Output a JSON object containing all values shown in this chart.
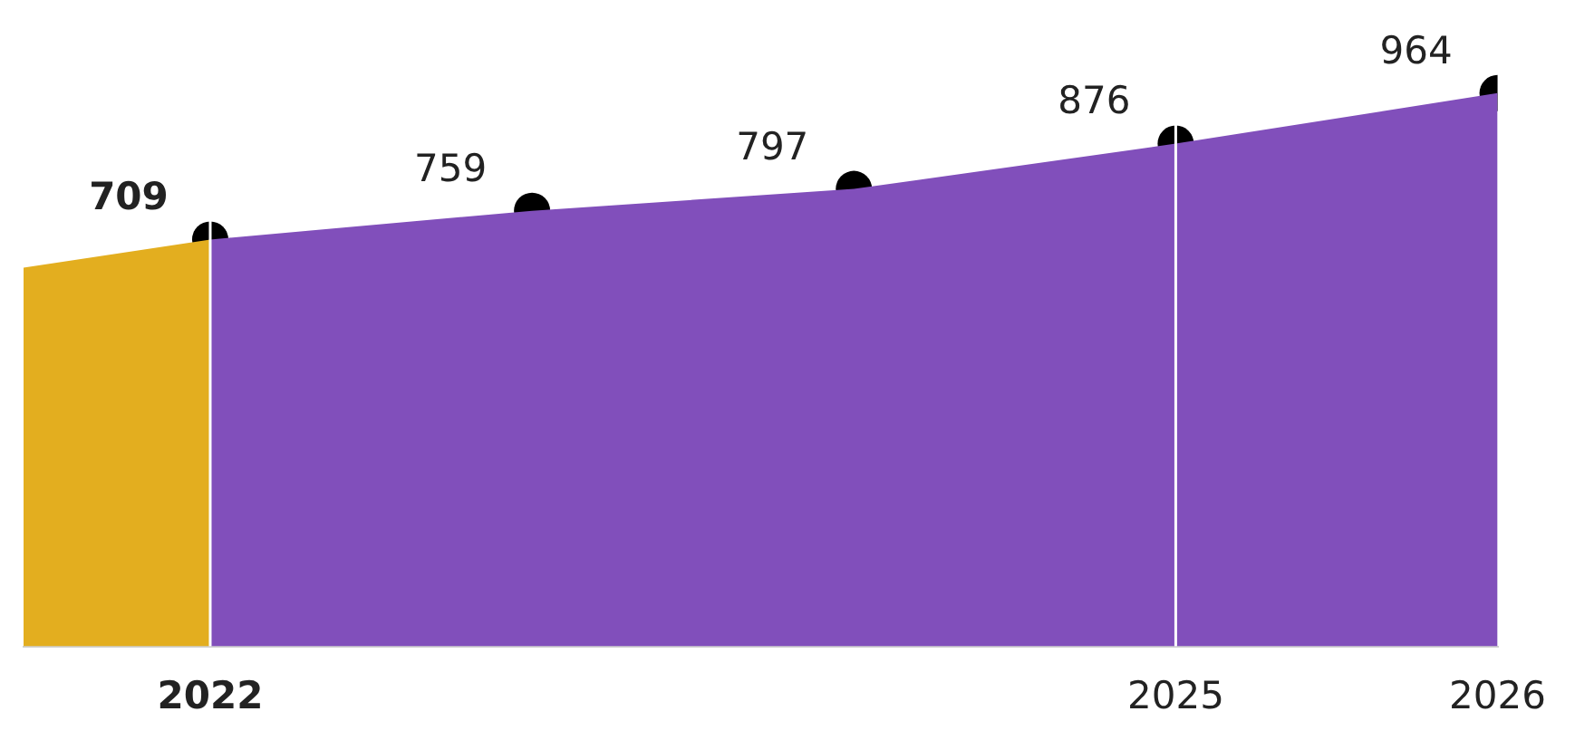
{
  "chart_data": {
    "type": "area",
    "xlim": [
      2021.42,
      2026
    ],
    "xticks": [
      2022,
      2025,
      2026
    ],
    "tick_labels": "x",
    "legend": false,
    "ref_lines": [
      {
        "axis": "x",
        "value": 2022,
        "color": "#ffffff"
      },
      {
        "axis": "x",
        "value": 2025,
        "color": "#ffffff"
      }
    ],
    "series": [
      {
        "color": "#e3ae1f",
        "x": [
          2021.42,
          2022
        ],
        "values": [
          660,
          709
        ]
      },
      {
        "color": "#814fbb",
        "x": [
          2022,
          2023,
          2024,
          2025,
          2026
        ],
        "values": [
          709,
          759,
          797,
          876,
          964
        ]
      },
      {
        "type": "scatter",
        "color": "#000000",
        "marker": "circle",
        "x": [
          2022,
          2023,
          2024,
          2025,
          2026
        ],
        "values": [
          709,
          759,
          797,
          876,
          964
        ],
        "value_labels": [
          "709",
          "759",
          "797",
          "876",
          "964"
        ]
      }
    ]
  }
}
